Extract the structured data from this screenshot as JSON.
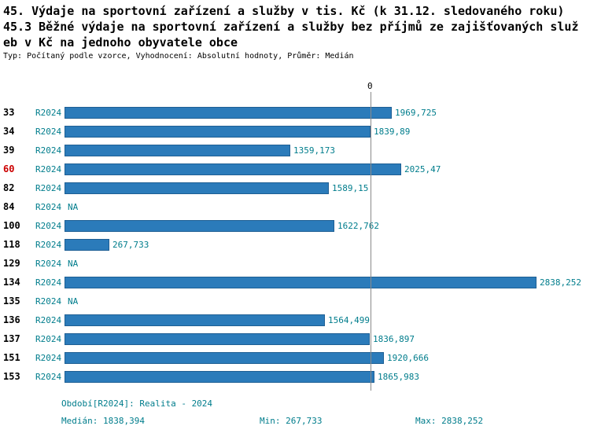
{
  "title": {
    "line1": "45. Výdaje na sportovní zařízení a služby v tis. Kč (k 31.12. sledovaného roku)",
    "line2": "45.3 Běžné výdaje na sportovní zařízení a služby bez příjmů ze zajišťovaných služeb v Kč na jednoho obyvatele obce",
    "meta": "Typ: Počítaný podle vzorce, Vyhodnocení: Absolutní hodnoty, Průměr: Medián"
  },
  "chart_data": {
    "type": "bar",
    "orientation": "horizontal",
    "categories": [
      "33",
      "34",
      "39",
      "60",
      "82",
      "84",
      "100",
      "118",
      "129",
      "134",
      "135",
      "136",
      "137",
      "151",
      "153"
    ],
    "series_label": "R2024",
    "values": [
      1969.725,
      1839.89,
      1359.173,
      2025.47,
      1589.15,
      null,
      1622.762,
      267.733,
      null,
      2838.252,
      null,
      1564.499,
      1836.897,
      1920.666,
      1865.983
    ],
    "value_labels": [
      "1969,725",
      "1839,89",
      "1359,173",
      "2025,47",
      "1589,15",
      "NA",
      "1622,762",
      "267,733",
      "NA",
      "2838,252",
      "NA",
      "1564,499",
      "1836,897",
      "1920,666",
      "1865,983"
    ],
    "highlighted_category": "60",
    "reference_line": {
      "label": "0",
      "value": 1838.394
    },
    "xlim": [
      0,
      2838.252
    ],
    "median": 1838.394,
    "min": 267.733,
    "max": 2838.252,
    "grid": false,
    "legend": false
  },
  "footer": {
    "period": "Období[R2024]: Realita - 2024",
    "median": "Medián: 1838,394",
    "min": "Min: 267,733",
    "max": "Max: 2838,252"
  },
  "colors": {
    "bar_fill": "#2b7bba",
    "bar_border": "#1e5f94",
    "accent_text": "#007d8c",
    "highlight_text": "#cc0000",
    "reference_line": "#8a8a8a",
    "text": "#000000"
  }
}
